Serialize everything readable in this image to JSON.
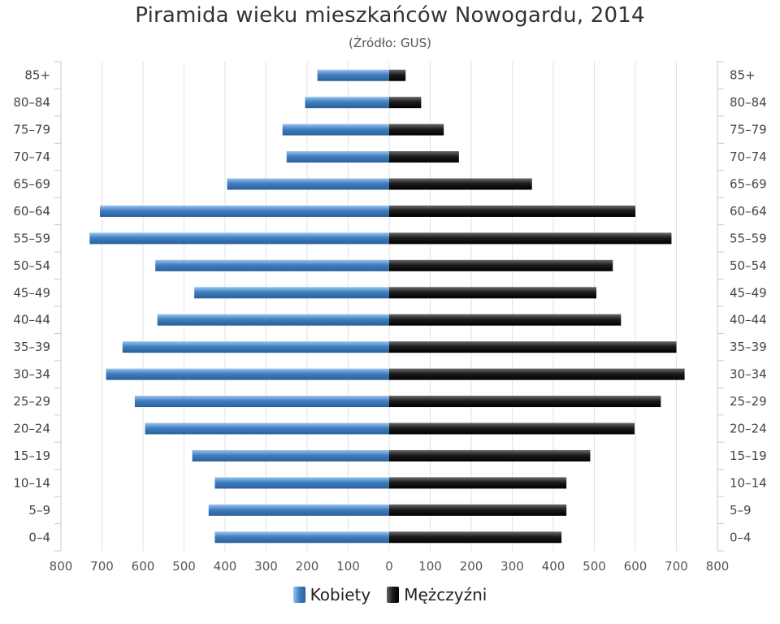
{
  "chart_data": {
    "type": "bar",
    "orientation": "horizontal-pyramid",
    "title": "Piramida wieku mieszkańców Nowogardu, 2014",
    "subtitle": "(Źródło: GUS)",
    "categories": [
      "0–4",
      "5–9",
      "10–14",
      "15–19",
      "20–24",
      "25–29",
      "30–34",
      "35–39",
      "40–44",
      "45–49",
      "50–54",
      "55–59",
      "60–64",
      "65–69",
      "70–74",
      "75–79",
      "80–84",
      "85+"
    ],
    "series": [
      {
        "name": "Kobiety",
        "color": "#3f7fc1",
        "side": "left",
        "values": [
          425,
          440,
          425,
          480,
          595,
          620,
          690,
          650,
          565,
          475,
          570,
          730,
          705,
          395,
          250,
          260,
          205,
          175
        ]
      },
      {
        "name": "Mężczyźni",
        "color": "#1a1a1a",
        "side": "right",
        "values": [
          420,
          432,
          432,
          490,
          598,
          662,
          720,
          700,
          565,
          505,
          545,
          688,
          600,
          348,
          170,
          133,
          78,
          40
        ]
      }
    ],
    "xlim": [
      -800,
      800
    ],
    "x_ticks": [
      "800",
      "700",
      "600",
      "500",
      "400",
      "300",
      "200",
      "100",
      "0",
      "100",
      "200",
      "300",
      "400",
      "500",
      "600",
      "700",
      "800"
    ],
    "grid": true,
    "legend_position": "bottom"
  }
}
